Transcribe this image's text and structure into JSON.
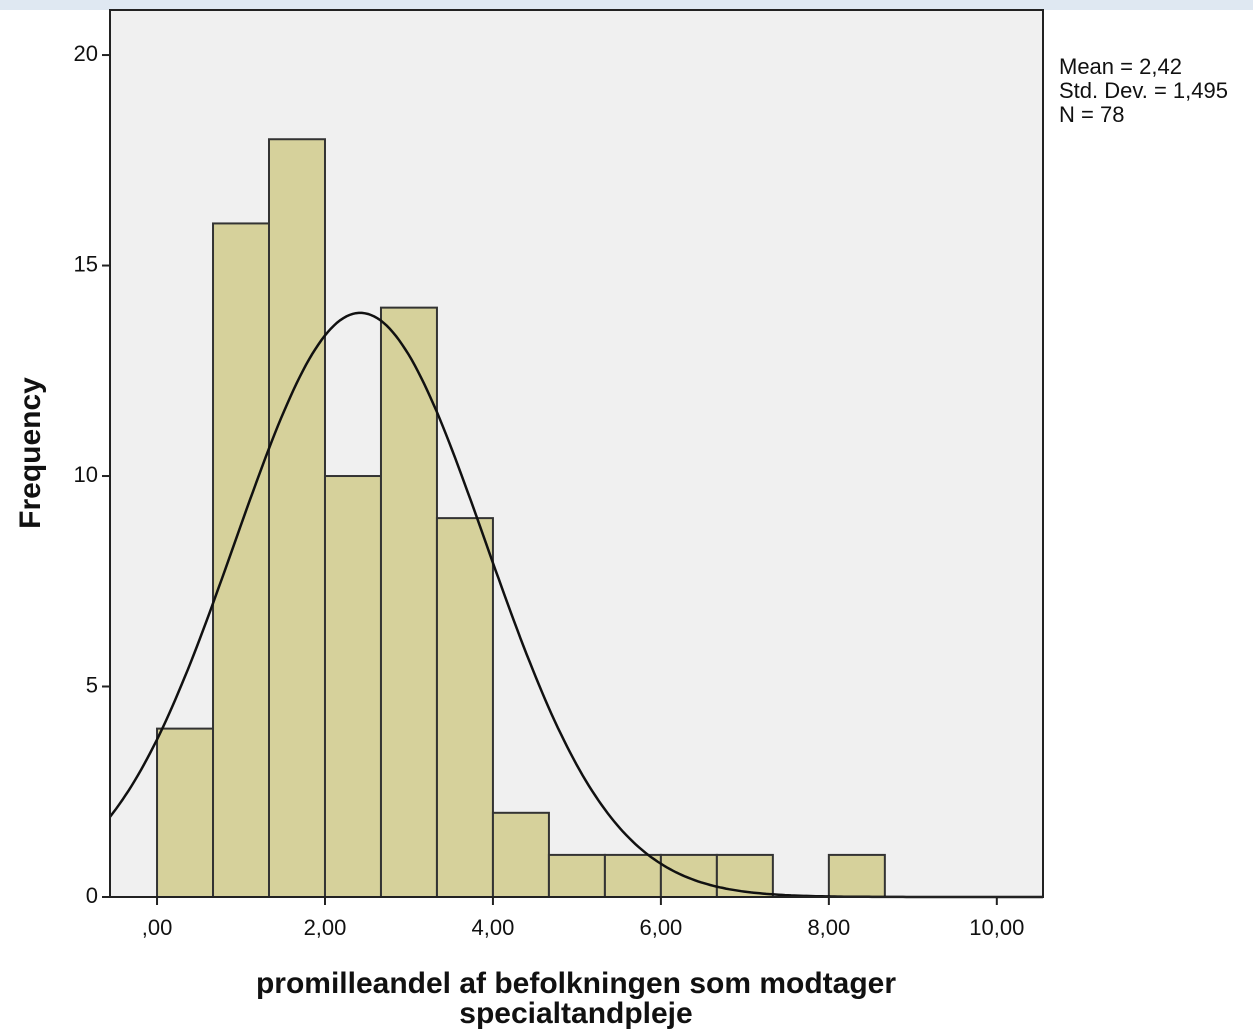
{
  "chart_data": {
    "type": "histogram",
    "xlabel": [
      "promilleandel af befolkningen som modtager",
      "specialtandpleje"
    ],
    "ylabel": "Frequency",
    "bins": [
      0,
      0.6667,
      1.3333,
      2,
      2.6667,
      3.3333,
      4,
      4.6667,
      5.3333,
      6,
      6.6667,
      7.3333,
      8,
      8.6667
    ],
    "values": [
      4,
      16,
      18,
      10,
      14,
      9,
      2,
      1,
      1,
      1,
      1,
      0,
      1
    ],
    "color": "#d6d19b",
    "curve_color": "#111111",
    "stats": [
      {
        "value": 2.42,
        "label": "Mean = 2,42"
      },
      {
        "value": 1.495,
        "label": "Std. Dev. = 1,495"
      },
      {
        "value": 78,
        "label": "N = 78"
      }
    ],
    "xlim": [
      -0.56,
      10.55
    ],
    "ylim": [
      0,
      21.07
    ],
    "xticks": [
      {
        "value": 0,
        "label": ",00"
      },
      {
        "value": 2,
        "label": "2,00"
      },
      {
        "value": 4,
        "label": "4,00"
      },
      {
        "value": 6,
        "label": "6,00"
      },
      {
        "value": 8,
        "label": "8,00"
      },
      {
        "value": 10,
        "label": "10,00"
      }
    ],
    "yticks": [
      0,
      5,
      10,
      15,
      20
    ],
    "grid": false
  }
}
